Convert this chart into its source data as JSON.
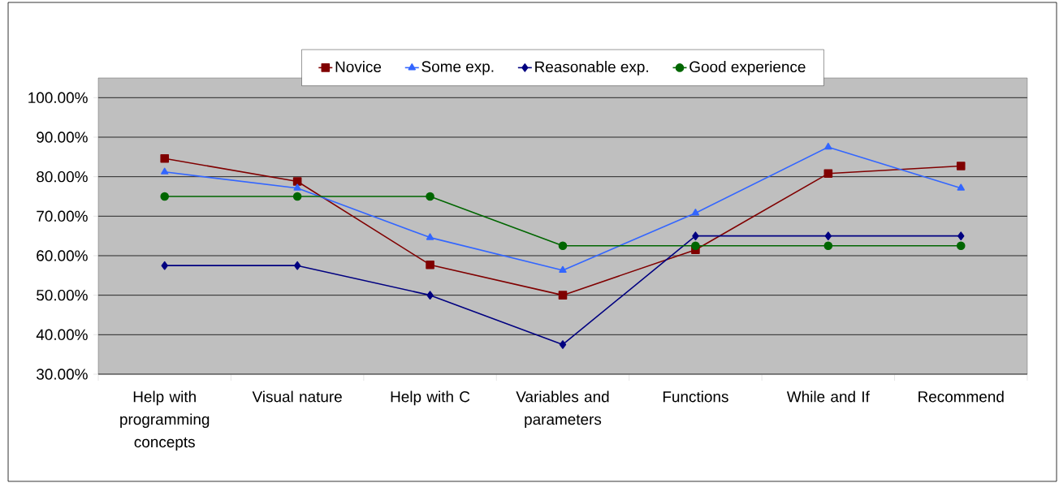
{
  "chart_data": {
    "type": "line",
    "categories": [
      "Help with programming concepts",
      "Visual nature",
      "Help with C",
      "Variables and parameters",
      "Functions",
      "While and If",
      "Recommend"
    ],
    "series": [
      {
        "name": "Novice",
        "color": "#800000",
        "marker": "square",
        "values": [
          84.6,
          78.8,
          57.7,
          50,
          61.5,
          80.8,
          82.7
        ]
      },
      {
        "name": "Some exp.",
        "color": "#3366ff",
        "marker": "triangle",
        "values": [
          81.2,
          77.1,
          64.6,
          56.3,
          70.8,
          87.5,
          77.1
        ]
      },
      {
        "name": "Reasonable exp.",
        "color": "#000080",
        "marker": "diamond",
        "values": [
          57.5,
          57.5,
          50,
          37.5,
          65,
          65,
          65
        ]
      },
      {
        "name": "Good experience",
        "color": "#006600",
        "marker": "circle",
        "values": [
          75,
          75,
          75,
          62.5,
          62.5,
          62.5,
          62.5
        ]
      }
    ],
    "ylim": [
      30,
      105
    ],
    "yticks": [
      {
        "value": 30,
        "label": "30.00%"
      },
      {
        "value": 40,
        "label": "40.00%"
      },
      {
        "value": 50,
        "label": "50.00%"
      },
      {
        "value": 60,
        "label": "60.00%"
      },
      {
        "value": 70,
        "label": "70.00%"
      },
      {
        "value": 80,
        "label": "80.00%"
      },
      {
        "value": 90,
        "label": "90.00%"
      },
      {
        "value": 100,
        "label": "100.00%"
      }
    ],
    "grid": "y",
    "legend": "top",
    "line_style": "solid"
  }
}
